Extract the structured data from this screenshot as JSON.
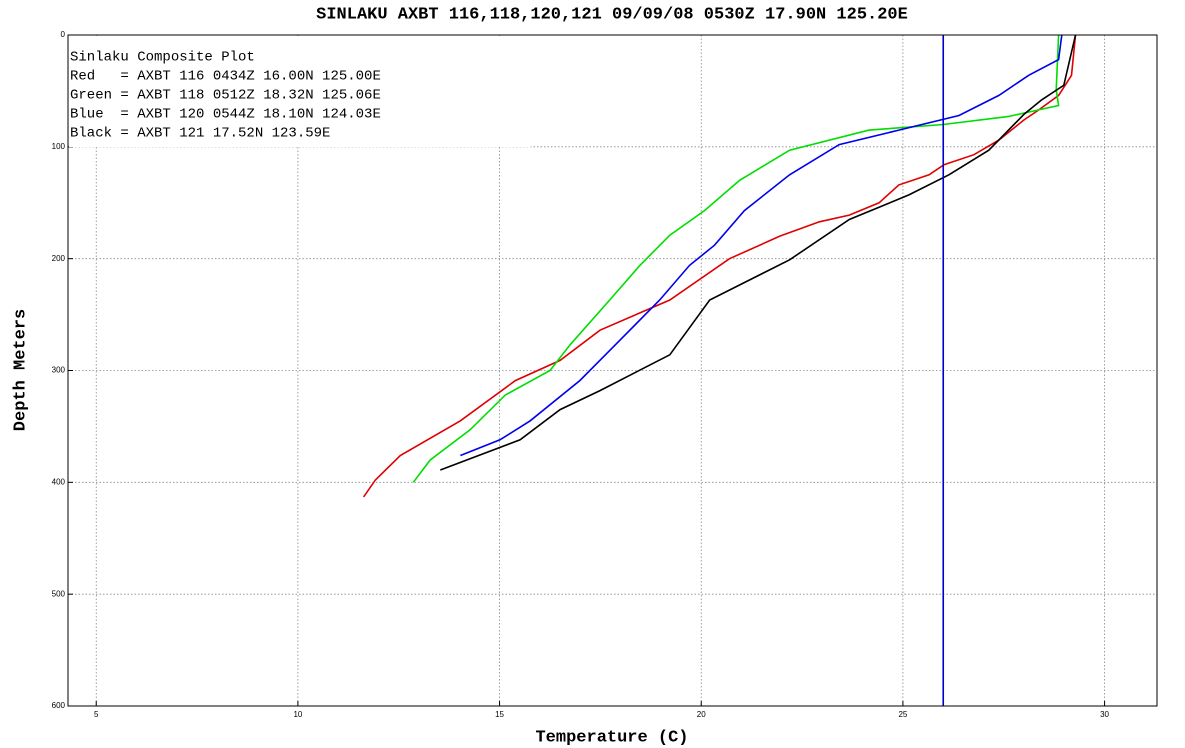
{
  "chart_data": {
    "type": "line",
    "title": "SINLAKU AXBT 116,118,120,121 09/09/08 0530Z 17.90N 125.20E",
    "x_label": "Temperature (C)",
    "y_label": "Depth Meters",
    "legend_lines": [
      "Sinlaku Composite Plot",
      "Red   = AXBT 116 0434Z 16.00N 125.00E",
      "Green = AXBT 118 0512Z 18.32N 125.06E",
      "Blue  = AXBT 120 0544Z 18.10N 124.03E",
      "Black = AXBT 121 17.52N 123.59E"
    ],
    "xlim": [
      4.3,
      31.3
    ],
    "ylim": [
      0,
      600
    ],
    "y_inverted": true,
    "xticks": [
      5,
      10,
      15,
      20,
      25,
      30
    ],
    "yticks": [
      0,
      100,
      200,
      300,
      400,
      500,
      600
    ],
    "grid": true,
    "reference_x": 26,
    "reference_color": "#0000cc",
    "series": [
      {
        "color": "#e00000",
        "x": [
          29.28,
          29.18,
          28.86,
          28.37,
          28.0,
          27.38,
          26.76,
          26.02,
          25.65,
          24.9,
          24.41,
          23.67,
          22.93,
          21.94,
          20.7,
          19.22,
          17.49,
          16.5,
          15.39,
          14.03,
          12.54,
          11.92,
          11.63
        ],
        "y": [
          0,
          36,
          54,
          67,
          76,
          94,
          107,
          116,
          125,
          134,
          150,
          161,
          167,
          180,
          200,
          237,
          264,
          291,
          309,
          345,
          376,
          398,
          413
        ]
      },
      {
        "color": "#00dd00",
        "x": [
          28.86,
          28.8,
          28.86,
          27.6,
          26.0,
          24.16,
          22.19,
          20.95,
          20.08,
          19.22,
          18.48,
          17.73,
          16.75,
          16.25,
          15.14,
          14.27,
          13.28,
          12.86
        ],
        "y": [
          0,
          49,
          63,
          73,
          80,
          85,
          103,
          130,
          157,
          179,
          206,
          237,
          277,
          300,
          322,
          353,
          380,
          400
        ]
      },
      {
        "color": "#0000ee",
        "x": [
          28.94,
          28.86,
          28.12,
          27.38,
          26.39,
          24.9,
          23.42,
          22.19,
          21.07,
          20.33,
          19.71,
          18.97,
          17.98,
          16.99,
          15.76,
          15.01,
          14.03
        ],
        "y": [
          0,
          22,
          36,
          54,
          72,
          85,
          98,
          125,
          157,
          188,
          206,
          237,
          273,
          309,
          345,
          362,
          376
        ]
      },
      {
        "color": "#000000",
        "x": [
          29.28,
          28.99,
          28.44,
          28.0,
          27.13,
          26.14,
          25.15,
          23.67,
          22.19,
          20.21,
          19.22,
          17.49,
          16.5,
          15.51,
          13.53
        ],
        "y": [
          0,
          45,
          58,
          71,
          103,
          125,
          143,
          165,
          201,
          237,
          286,
          318,
          335,
          362,
          389
        ]
      }
    ]
  }
}
